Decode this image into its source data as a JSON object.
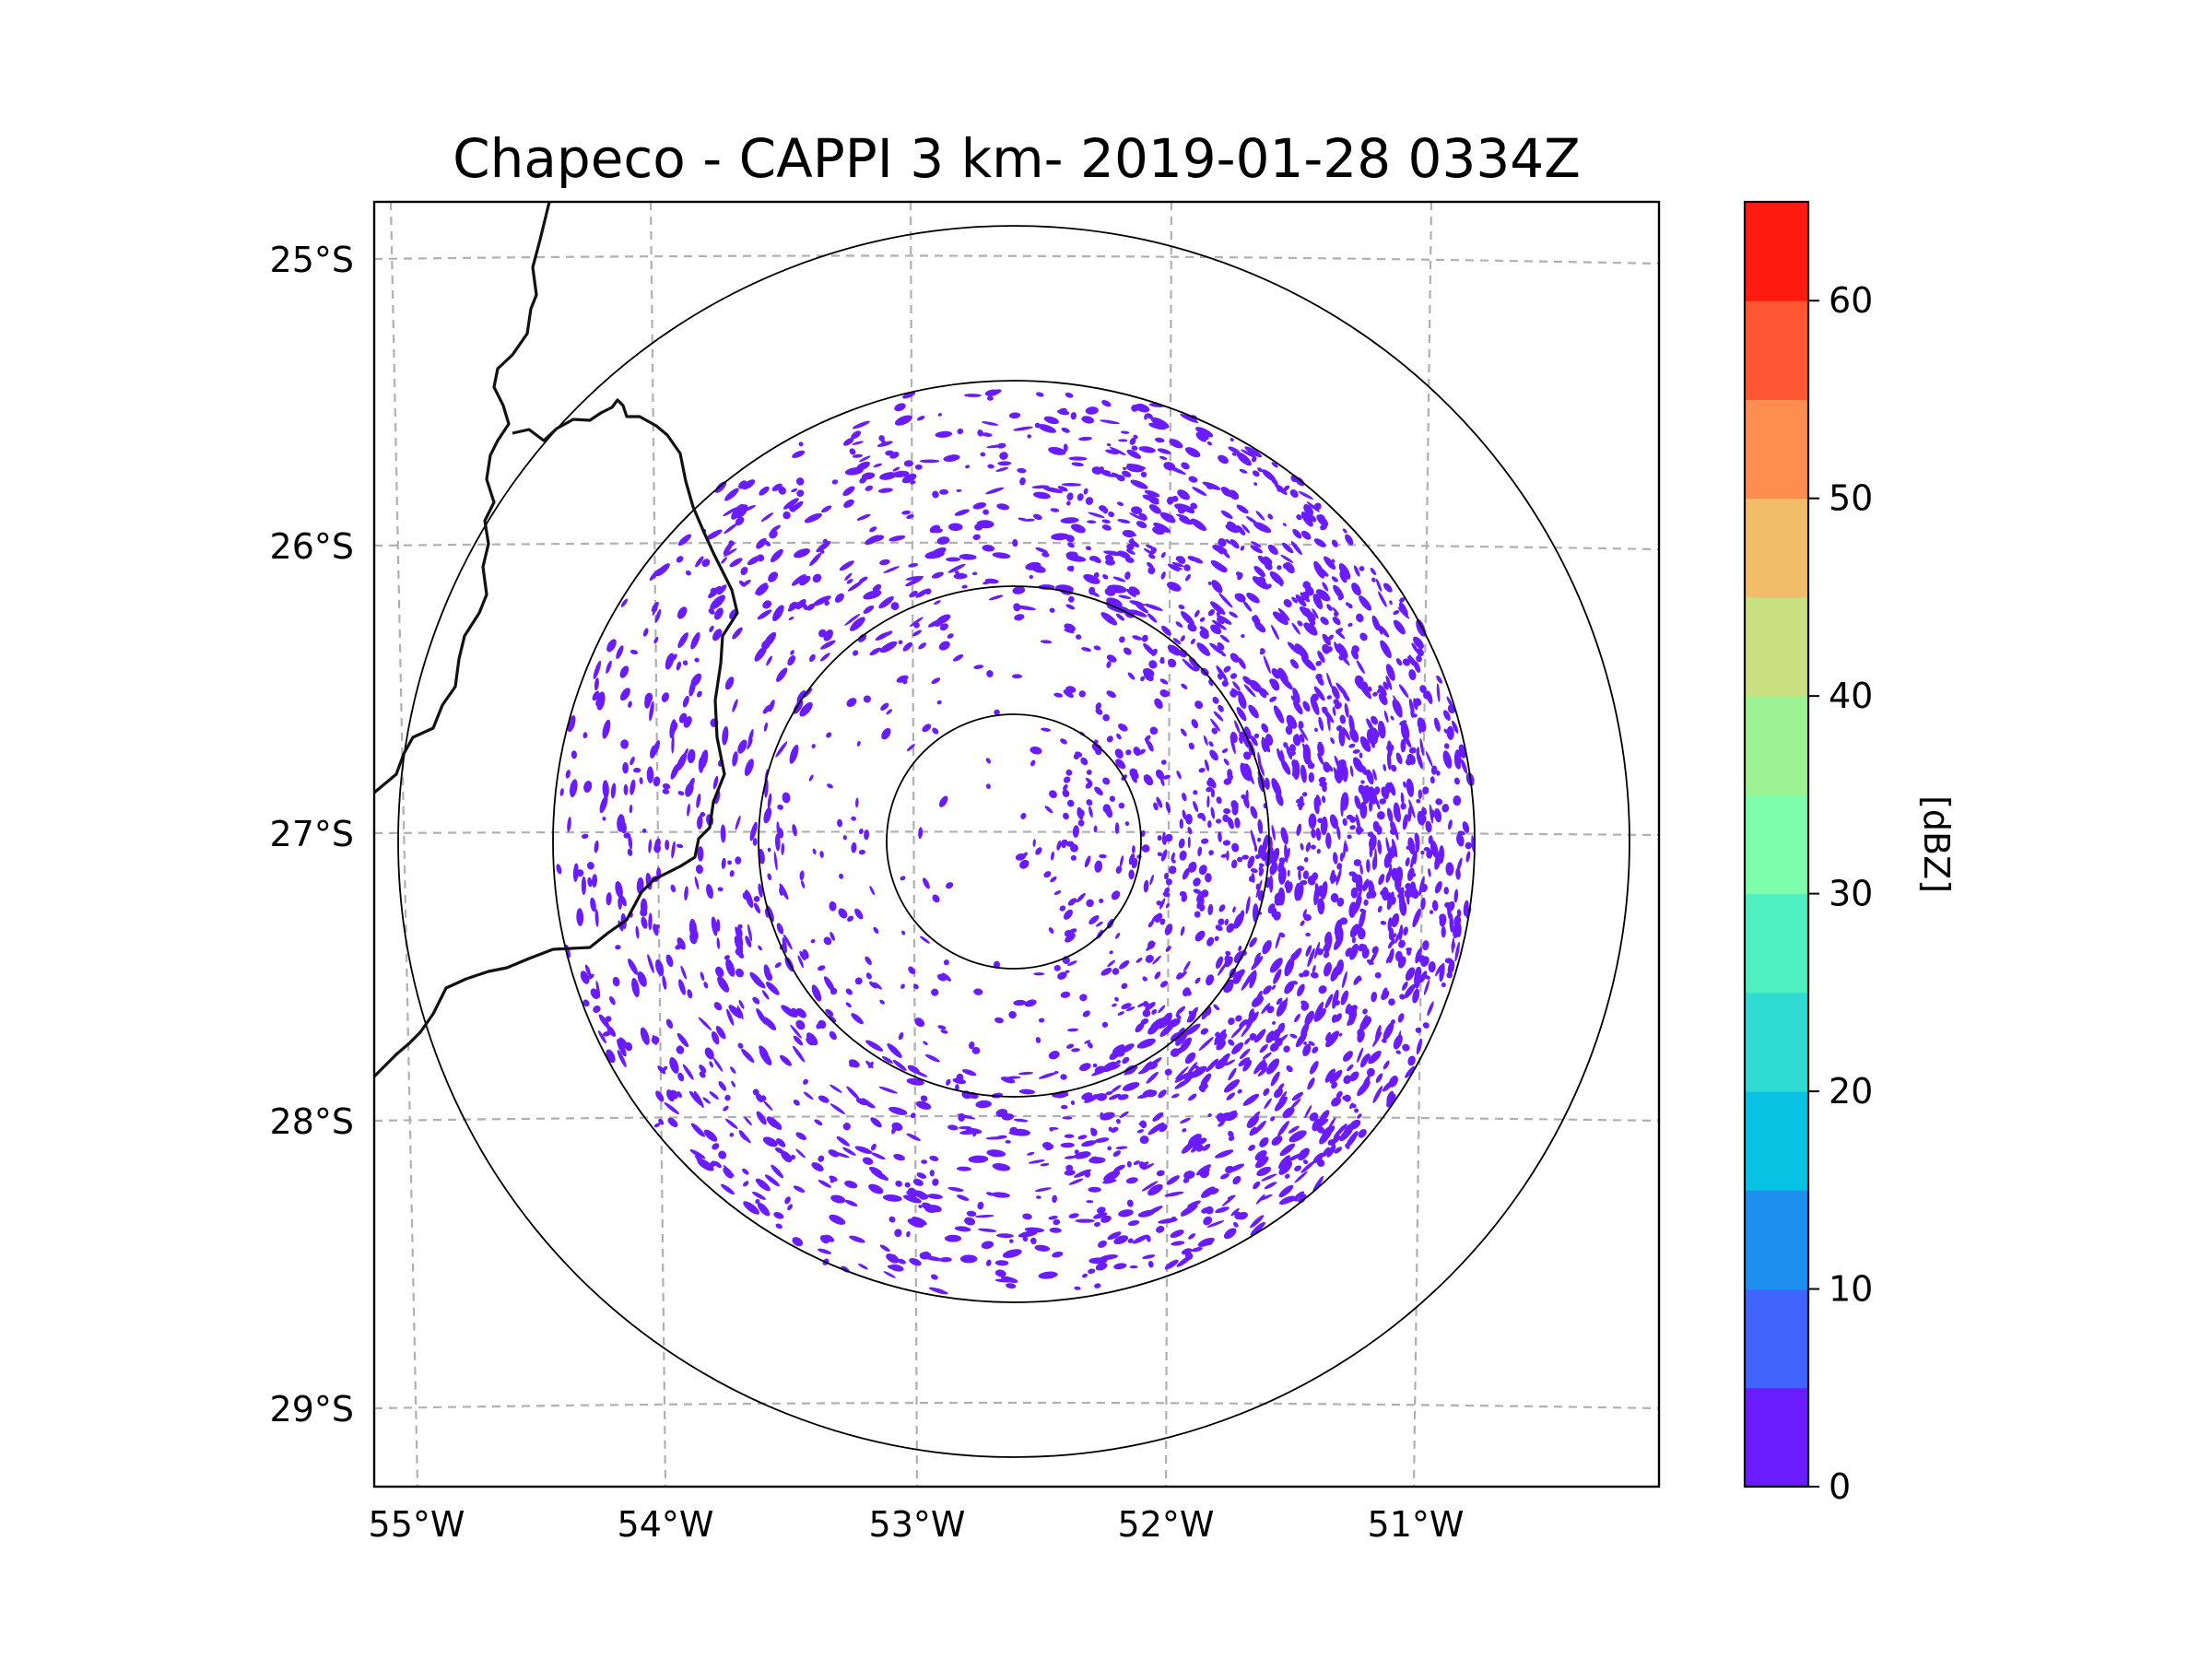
{
  "title": "Chapeco - CAPPI 3 km- 2019-01-28 0334Z",
  "map": {
    "type": "radar_reflectivity_map",
    "radar_site": "Chapeco",
    "product": "CAPPI 3 km",
    "datetime": "2019-01-28 0334Z",
    "lat_ticks": [
      "25°S",
      "26°S",
      "27°S",
      "28°S",
      "29°S"
    ],
    "lon_ticks": [
      "55°W",
      "54°W",
      "53°W",
      "52°W",
      "51°W"
    ],
    "range_rings_count": 4,
    "echo_color": "#6a1cff",
    "echo_distribution": "scattered weak echoes (0–5 dBZ) across the radar domain, densest to the east and southeast between the inner and outer rings",
    "boundary_color": "#000000",
    "gridline_color": "#b0b0b0"
  },
  "colorbar": {
    "label": "[dBZ]",
    "min": 0,
    "max": 65,
    "step": 5,
    "ticks": [
      "0",
      "10",
      "20",
      "30",
      "40",
      "50",
      "60"
    ],
    "colors": [
      "#6a1cff",
      "#4164ff",
      "#1f8fee",
      "#07c2e2",
      "#30dcd2",
      "#4ff0c0",
      "#7efeac",
      "#9df294",
      "#c8df82",
      "#f2bd69",
      "#ff8d50",
      "#ff5733",
      "#ff1a12"
    ]
  }
}
